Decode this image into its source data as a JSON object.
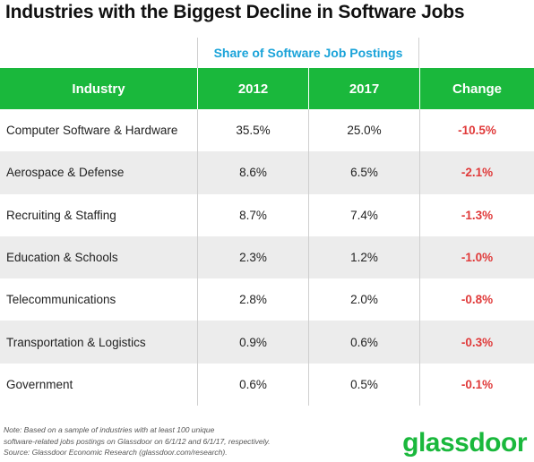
{
  "title": "Industries with the Biggest Decline in Software Jobs",
  "super_header": "Share of Software Job Postings",
  "columns": [
    "Industry",
    "2012",
    "2017",
    "Change"
  ],
  "colors": {
    "header_green": "#1ab83c",
    "super_header_blue": "#1aa3d9",
    "change_red": "#e03a3a",
    "stripe_gray": "#ececec",
    "logo_green": "#1ab83c"
  },
  "chart_data": {
    "type": "table",
    "title": "Industries with the Biggest Decline in Software Jobs",
    "column_group": "Share of Software Job Postings",
    "columns": [
      "Industry",
      "2012",
      "2017",
      "Change"
    ],
    "rows": [
      {
        "industry": "Computer Software & Hardware",
        "y2012": "35.5%",
        "y2017": "25.0%",
        "change": "-10.5%"
      },
      {
        "industry": "Aerospace & Defense",
        "y2012": "8.6%",
        "y2017": "6.5%",
        "change": "-2.1%"
      },
      {
        "industry": "Recruiting & Staffing",
        "y2012": "8.7%",
        "y2017": "7.4%",
        "change": "-1.3%"
      },
      {
        "industry": "Education & Schools",
        "y2012": "2.3%",
        "y2017": "1.2%",
        "change": "-1.0%"
      },
      {
        "industry": "Telecommunications",
        "y2012": "2.8%",
        "y2017": "2.0%",
        "change": "-0.8%"
      },
      {
        "industry": "Transportation & Logistics",
        "y2012": "0.9%",
        "y2017": "0.6%",
        "change": "-0.3%"
      },
      {
        "industry": "Government",
        "y2012": "0.6%",
        "y2017": "0.5%",
        "change": "-0.1%"
      }
    ]
  },
  "note_lines": [
    "Note: Based on a sample of industries with at least 100 unique",
    "software-related jobs postings on Glassdoor on 6/1/12 and 6/1/17, respectively.",
    "Source: Glassdoor Economic Research (glassdoor.com/research)."
  ],
  "logo_text": "glassdoor"
}
